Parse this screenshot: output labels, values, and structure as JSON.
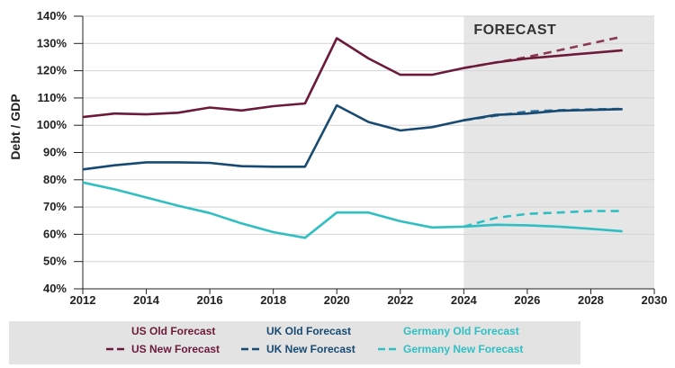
{
  "chart_data": {
    "type": "line",
    "ylabel": "Debt / GDP",
    "xlabel": "",
    "xlim": [
      2012,
      2030
    ],
    "ylim": [
      40,
      140
    ],
    "x_ticks": [
      "2012",
      "2014",
      "2016",
      "2018",
      "2020",
      "2022",
      "2024",
      "2026",
      "2028",
      "2030"
    ],
    "x_tick_values": [
      2012,
      2014,
      2016,
      2018,
      2020,
      2022,
      2024,
      2026,
      2028,
      2030
    ],
    "y_ticks": [
      "40%",
      "50%",
      "60%",
      "70%",
      "80%",
      "90%",
      "100%",
      "110%",
      "120%",
      "130%",
      "140%"
    ],
    "y_tick_values": [
      40,
      50,
      60,
      70,
      80,
      90,
      100,
      110,
      120,
      130,
      140
    ],
    "forecast_region": {
      "label": "FORECAST",
      "start": 2024,
      "end": 2030,
      "color": "#e6e6e6"
    },
    "series": [
      {
        "name": "US Old Forecast",
        "color": "#6b1a3a",
        "dashed": false,
        "x": [
          2012,
          2013,
          2014,
          2015,
          2016,
          2017,
          2018,
          2019,
          2020,
          2021,
          2022,
          2023,
          2024,
          2025,
          2026,
          2027,
          2028,
          2029
        ],
        "values": [
          103,
          104.3,
          104,
          104.6,
          106.5,
          105.4,
          107,
          108,
          131.9,
          124.5,
          118.5,
          118.5,
          121,
          123,
          124.5,
          125.5,
          126.5,
          127.5
        ]
      },
      {
        "name": "US New Forecast",
        "color": "#8a3a55",
        "dashed": true,
        "x": [
          2024,
          2025,
          2026,
          2027,
          2028,
          2029
        ],
        "values": [
          121,
          123,
          125,
          127.5,
          130,
          132.5
        ]
      },
      {
        "name": "UK Old Forecast",
        "color": "#174a72",
        "dashed": false,
        "x": [
          2012,
          2013,
          2014,
          2015,
          2016,
          2017,
          2018,
          2019,
          2020,
          2021,
          2022,
          2023,
          2024,
          2025,
          2026,
          2027,
          2028,
          2029
        ],
        "values": [
          83.8,
          85.3,
          86.4,
          86.4,
          86.2,
          85,
          84.8,
          84.8,
          107.3,
          101.2,
          98.1,
          99.3,
          101.8,
          103.8,
          104.3,
          105.3,
          105.6,
          105.9
        ]
      },
      {
        "name": "UK New Forecast",
        "color": "#2f6f9a",
        "dashed": true,
        "x": [
          2024,
          2025,
          2026,
          2027,
          2028,
          2029
        ],
        "values": [
          101.8,
          103.5,
          105,
          105.5,
          105.8,
          106
        ]
      },
      {
        "name": "Germany Old Forecast",
        "color": "#2fbfc2",
        "dashed": false,
        "x": [
          2012,
          2013,
          2014,
          2015,
          2016,
          2017,
          2018,
          2019,
          2020,
          2021,
          2022,
          2023,
          2024,
          2025,
          2026,
          2027,
          2028,
          2029
        ],
        "values": [
          79,
          76.5,
          73.5,
          70.5,
          67.8,
          64,
          60.8,
          58.7,
          68,
          68,
          64.8,
          62.5,
          62.8,
          63.5,
          63.3,
          62.8,
          62,
          61.1
        ]
      },
      {
        "name": "Germany New Forecast",
        "color": "#2fbfc2",
        "dashed": true,
        "x": [
          2024,
          2025,
          2026,
          2027,
          2028,
          2029
        ],
        "values": [
          62.8,
          66,
          67.5,
          68,
          68.5,
          68.5
        ]
      }
    ],
    "legend": {
      "placement": "bottom",
      "entries": [
        {
          "label": "US Old Forecast",
          "color": "#6b1a3a",
          "dashed": false
        },
        {
          "label": "UK Old Forecast",
          "color": "#174a72",
          "dashed": false
        },
        {
          "label": "Germany Old Forecast",
          "color": "#2fbfc2",
          "dashed": false
        },
        {
          "label": "US New Forecast",
          "color": "#6b1a3a",
          "dashed": true
        },
        {
          "label": "UK New Forecast",
          "color": "#174a72",
          "dashed": true
        },
        {
          "label": "Germany New Forecast",
          "color": "#2fbfc2",
          "dashed": true
        }
      ]
    }
  }
}
